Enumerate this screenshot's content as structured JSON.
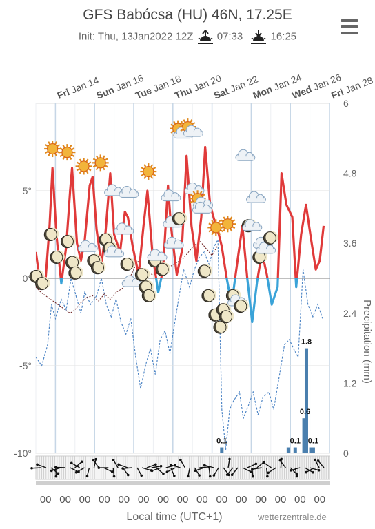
{
  "header": {
    "title": "GFS Babócsa (HU) 46N, 17.25E",
    "init": "Init: Thu, 13Jan2022 12Z",
    "sunrise": "07:33",
    "sunset": "16:25",
    "credit": "wetterzentrale.de",
    "xlabel": "Local time (UTC+1)"
  },
  "icons": {
    "menu": "hamburger-menu-icon",
    "sunrise": "sunrise-icon",
    "sunset": "sunset-icon"
  },
  "colors": {
    "temp": "#e03a3a",
    "temp_below": "#3aa3d8",
    "dew": "#3d6e99",
    "precip_dashed": "#4f86c6",
    "bar": "#4a7fae"
  },
  "chart_data": {
    "type": "line",
    "date_labels": [
      {
        "day": "Fri",
        "date": "Jan 14"
      },
      {
        "day": "Sun",
        "date": "Jan 16"
      },
      {
        "day": "Tue",
        "date": "Jan 18"
      },
      {
        "day": "Thu",
        "date": "Jan 20"
      },
      {
        "day": "Sat",
        "date": "Jan 22"
      },
      {
        "day": "Mon",
        "date": "Jan 24"
      },
      {
        "day": "Wed",
        "date": "Jan 26"
      },
      {
        "day": "Fri",
        "date": "Jan 28"
      }
    ],
    "xlim": [
      0,
      15
    ],
    "ylim_temp": [
      -10,
      10
    ],
    "yticks_temp": [
      "5°",
      "0°",
      "-5°",
      "-10°"
    ],
    "yticks_temp_values": [
      5,
      0,
      -5,
      -10
    ],
    "ylim_precip": [
      0,
      6
    ],
    "yticks_precip": [
      "6",
      "4.8",
      "3.6",
      "2.4",
      "1.2",
      "0"
    ],
    "yticks_precip_values": [
      6,
      4.8,
      3.6,
      2.4,
      1.2,
      0
    ],
    "y2label": "Precipitation (mm)",
    "hour_labels": [
      "00",
      "00",
      "00",
      "00",
      "00",
      "00",
      "00",
      "00",
      "00",
      "00",
      "00",
      "00",
      "00",
      "00",
      "00"
    ],
    "temperature": [
      [
        0,
        1.5
      ],
      [
        0.25,
        -0.5
      ],
      [
        0.5,
        0
      ],
      [
        0.7,
        3
      ],
      [
        0.85,
        6.3
      ],
      [
        1.05,
        2.5
      ],
      [
        1.3,
        -0.3
      ],
      [
        1.55,
        1.8
      ],
      [
        1.75,
        5
      ],
      [
        1.85,
        6.3
      ],
      [
        2.1,
        2
      ],
      [
        2.3,
        1
      ],
      [
        2.5,
        2.2
      ],
      [
        2.75,
        5.3
      ],
      [
        2.9,
        5.8
      ],
      [
        3.1,
        2.8
      ],
      [
        3.35,
        0.8
      ],
      [
        3.55,
        2.5
      ],
      [
        3.8,
        6
      ],
      [
        4,
        2.5
      ],
      [
        4.3,
        1.5
      ],
      [
        4.55,
        3.8
      ],
      [
        4.7,
        3.5
      ],
      [
        4.95,
        1.8
      ],
      [
        5.25,
        0.2
      ],
      [
        5.5,
        3
      ],
      [
        5.7,
        5
      ],
      [
        5.95,
        1.5
      ],
      [
        6.25,
        -0.8
      ],
      [
        6.5,
        0.5
      ],
      [
        6.75,
        5.3
      ],
      [
        6.9,
        3
      ],
      [
        7.2,
        0.2
      ],
      [
        7.45,
        1.5
      ],
      [
        7.7,
        7
      ],
      [
        7.95,
        3
      ],
      [
        8.2,
        1
      ],
      [
        8.45,
        3.5
      ],
      [
        8.65,
        7.5
      ],
      [
        8.9,
        4.2
      ],
      [
        9.2,
        3
      ],
      [
        9.35,
        2.5
      ],
      [
        9.5,
        1.8
      ],
      [
        9.75,
        0
      ],
      [
        10,
        -1.5
      ],
      [
        10.3,
        1
      ],
      [
        10.55,
        3
      ],
      [
        10.8,
        0
      ],
      [
        11.05,
        -2.5
      ],
      [
        11.3,
        -0.2
      ],
      [
        11.55,
        1.5
      ],
      [
        11.8,
        0.2
      ],
      [
        12.05,
        -1.5
      ],
      [
        12.35,
        -0.5
      ],
      [
        12.55,
        6
      ],
      [
        12.8,
        4.2
      ],
      [
        13.1,
        3.5
      ],
      [
        13.3,
        -0.5
      ],
      [
        13.55,
        2.5
      ],
      [
        13.8,
        4.2
      ],
      [
        14.05,
        2.3
      ],
      [
        14.3,
        0.5
      ],
      [
        14.5,
        1
      ],
      [
        14.7,
        3
      ]
    ],
    "dewpoint": [
      [
        0,
        -4.5
      ],
      [
        0.3,
        -5
      ],
      [
        0.6,
        -3.8
      ],
      [
        0.8,
        -1.5
      ],
      [
        1,
        -2.3
      ],
      [
        1.3,
        -1.2
      ],
      [
        1.55,
        -1.8
      ],
      [
        1.8,
        0
      ],
      [
        2.1,
        -1.2
      ],
      [
        2.3,
        -2
      ],
      [
        2.5,
        -0.8
      ],
      [
        2.8,
        -1.5
      ],
      [
        3.1,
        -1
      ],
      [
        3.35,
        0
      ],
      [
        3.6,
        -1.5
      ],
      [
        3.85,
        -2.2
      ],
      [
        4.1,
        -1.2
      ],
      [
        4.35,
        -2.5
      ],
      [
        4.6,
        -3.2
      ],
      [
        4.85,
        -2.3
      ],
      [
        5.1,
        -4.5
      ],
      [
        5.35,
        -6.3
      ],
      [
        5.6,
        -5
      ],
      [
        5.85,
        -4
      ],
      [
        6.1,
        -5.5
      ],
      [
        6.35,
        -3.5
      ],
      [
        6.6,
        -3
      ],
      [
        6.85,
        -4.3
      ],
      [
        7.1,
        -2.5
      ],
      [
        7.35,
        -0.8
      ],
      [
        7.55,
        0.5
      ],
      [
        7.85,
        -0.5
      ],
      [
        8.1,
        0.5
      ],
      [
        8.35,
        1.2
      ],
      [
        8.6,
        1.5
      ],
      [
        8.85,
        0.8
      ],
      [
        9.1,
        1.8
      ],
      [
        9.3,
        2.2
      ],
      [
        9.5,
        -7.5
      ],
      [
        9.7,
        -9.8
      ],
      [
        9.9,
        -7.5
      ],
      [
        10.1,
        -7
      ],
      [
        10.4,
        -6.5
      ],
      [
        10.6,
        -8
      ],
      [
        10.85,
        -7.3
      ],
      [
        11.1,
        -6.5
      ],
      [
        11.35,
        -7.8
      ],
      [
        11.6,
        -6.8
      ],
      [
        11.9,
        -6.5
      ],
      [
        12.15,
        -7.5
      ],
      [
        12.45,
        -5.5
      ],
      [
        12.7,
        -3.8
      ],
      [
        12.95,
        -3.5
      ],
      [
        13.15,
        -4
      ],
      [
        13.4,
        -4.5
      ],
      [
        13.65,
        0.5
      ],
      [
        13.9,
        -1.5
      ],
      [
        14.15,
        -2.2
      ],
      [
        14.4,
        -1.5
      ],
      [
        14.65,
        -2.3
      ]
    ],
    "precip_trace": [
      [
        0,
        -0.5
      ],
      [
        0.25,
        -0.8
      ],
      [
        0.5,
        -1
      ],
      [
        0.75,
        -1.2
      ],
      [
        1,
        -1.4
      ],
      [
        1.25,
        -1.6
      ],
      [
        1.5,
        -1.8
      ],
      [
        1.75,
        -2
      ],
      [
        2,
        -1.8
      ],
      [
        2.3,
        -1.4
      ],
      [
        2.6,
        -1.1
      ],
      [
        2.9,
        -1
      ],
      [
        3.2,
        -1.3
      ],
      [
        3.5,
        -0.9
      ],
      [
        3.8,
        -1.2
      ],
      [
        4.1,
        -0.8
      ],
      [
        4.4,
        -0.6
      ],
      [
        4.7,
        -0.2
      ],
      [
        5,
        0.5
      ],
      [
        5.2,
        1
      ],
      [
        5.4,
        0.6
      ],
      [
        5.7,
        0.3
      ],
      [
        6,
        0.2
      ],
      [
        6.3,
        0.3
      ],
      [
        6.6,
        0.5
      ],
      [
        6.9,
        0.7
      ],
      [
        7.2,
        0.9
      ],
      [
        7.5,
        1.1
      ],
      [
        7.8,
        1.5
      ],
      [
        8.1,
        1.9
      ],
      [
        8.4,
        2.1
      ],
      [
        8.7,
        1.7
      ],
      [
        9,
        1.3
      ],
      [
        9.3,
        1.9
      ]
    ],
    "precip_bars": [
      {
        "x": 9.5,
        "value": 0.1
      },
      {
        "x": 12.9,
        "value": 0.1
      },
      {
        "x": 13.25,
        "value": 0.1
      },
      {
        "x": 13.7,
        "value": 0.6
      },
      {
        "x": 13.82,
        "value": 1.8
      },
      {
        "x": 14.05,
        "value": 0.1
      },
      {
        "x": 14.17,
        "value": 0.1
      }
    ],
    "data_labels": [
      "0.1",
      "0.1",
      "0.6",
      "1.8",
      "0.1"
    ],
    "data_label_points": [
      {
        "x": 9.5,
        "value": 0.1
      },
      {
        "x": 13.25,
        "value": 0.1
      },
      {
        "x": 13.75,
        "value": 0.6
      },
      {
        "x": 13.82,
        "value": 1.8
      },
      {
        "x": 14.17,
        "value": 0.1
      }
    ],
    "weather_icons": [
      {
        "x": 0.0,
        "temp": 0.1,
        "type": "moon"
      },
      {
        "x": 0.3,
        "temp": -0.3,
        "type": "moon"
      },
      {
        "x": 0.85,
        "temp": 7.4,
        "type": "sun"
      },
      {
        "x": 0.75,
        "temp": 2.5,
        "type": "moon"
      },
      {
        "x": 1.05,
        "temp": 1.2,
        "type": "moon"
      },
      {
        "x": 1.6,
        "temp": 7.2,
        "type": "sun"
      },
      {
        "x": 1.6,
        "temp": 2.1,
        "type": "moon"
      },
      {
        "x": 1.85,
        "temp": 0.9,
        "type": "moon"
      },
      {
        "x": 2.0,
        "temp": 0.3,
        "type": "moon"
      },
      {
        "x": 2.45,
        "temp": 6.4,
        "type": "sun"
      },
      {
        "x": 2.65,
        "temp": 1.8,
        "type": "cloud"
      },
      {
        "x": 2.95,
        "temp": 1.0,
        "type": "moon"
      },
      {
        "x": 3.15,
        "temp": 0.6,
        "type": "moon"
      },
      {
        "x": 3.3,
        "temp": 6.6,
        "type": "sun"
      },
      {
        "x": 3.55,
        "temp": 2.2,
        "type": "moon"
      },
      {
        "x": 3.75,
        "temp": 1.7,
        "type": "moon"
      },
      {
        "x": 4.0,
        "temp": 1.5,
        "type": "cloud"
      },
      {
        "x": 4.0,
        "temp": 5.0,
        "type": "cloud"
      },
      {
        "x": 4.75,
        "temp": 4.9,
        "type": "cloud"
      },
      {
        "x": 4.5,
        "temp": 2.8,
        "type": "cloud"
      },
      {
        "x": 4.65,
        "temp": 0.8,
        "type": "moon"
      },
      {
        "x": 4.9,
        "temp": -0.2,
        "type": "cloud"
      },
      {
        "x": 5.4,
        "temp": 0.2,
        "type": "moon"
      },
      {
        "x": 5.6,
        "temp": -0.5,
        "type": "moon"
      },
      {
        "x": 5.75,
        "temp": -1.0,
        "type": "moon"
      },
      {
        "x": 5.75,
        "temp": 6.1,
        "type": "sun"
      },
      {
        "x": 6.05,
        "temp": 1.0,
        "type": "moon"
      },
      {
        "x": 6.2,
        "temp": 1.3,
        "type": "cloud"
      },
      {
        "x": 6.45,
        "temp": 0.5,
        "type": "moon"
      },
      {
        "x": 6.9,
        "temp": 4.7,
        "type": "cloud"
      },
      {
        "x": 7.0,
        "temp": 3.2,
        "type": "cloud"
      },
      {
        "x": 7.05,
        "temp": 2.0,
        "type": "cloud"
      },
      {
        "x": 7.3,
        "temp": 3.4,
        "type": "moon"
      },
      {
        "x": 7.4,
        "temp": 8.4,
        "type": "sun_cloud"
      },
      {
        "x": 7.9,
        "temp": 8.5,
        "type": "sun_cloud"
      },
      {
        "x": 8.1,
        "temp": 5.1,
        "type": "cloud"
      },
      {
        "x": 8.4,
        "temp": 4.4,
        "type": "sun_cloud"
      },
      {
        "x": 8.5,
        "temp": 4.0,
        "type": "cloud"
      },
      {
        "x": 8.6,
        "temp": 0.4,
        "type": "moon"
      },
      {
        "x": 9.2,
        "temp": 2.9,
        "type": "sun"
      },
      {
        "x": 9.8,
        "temp": 3.1,
        "type": "sun"
      },
      {
        "x": 8.8,
        "temp": -1.0,
        "type": "moon"
      },
      {
        "x": 9.15,
        "temp": -2.1,
        "type": "moon"
      },
      {
        "x": 9.4,
        "temp": -2.8,
        "type": "moon"
      },
      {
        "x": 9.55,
        "temp": -1.8,
        "type": "moon"
      },
      {
        "x": 9.7,
        "temp": -2.2,
        "type": "moon"
      },
      {
        "x": 10.05,
        "temp": -1.0,
        "type": "moon"
      },
      {
        "x": 10.3,
        "temp": -1.3,
        "type": "cloud"
      },
      {
        "x": 10.45,
        "temp": -1.6,
        "type": "moon"
      },
      {
        "x": 10.7,
        "temp": 7.0,
        "type": "cloud"
      },
      {
        "x": 10.85,
        "temp": 3.0,
        "type": "moon"
      },
      {
        "x": 11.05,
        "temp": 3.0,
        "type": "cloud"
      },
      {
        "x": 11.25,
        "temp": 4.6,
        "type": "cloud"
      },
      {
        "x": 11.4,
        "temp": 1.2,
        "type": "moon"
      },
      {
        "x": 11.6,
        "temp": 2.0,
        "type": "cloud"
      },
      {
        "x": 11.75,
        "temp": 1.7,
        "type": "cloud"
      },
      {
        "x": 11.95,
        "temp": 2.3,
        "type": "moon"
      }
    ]
  }
}
